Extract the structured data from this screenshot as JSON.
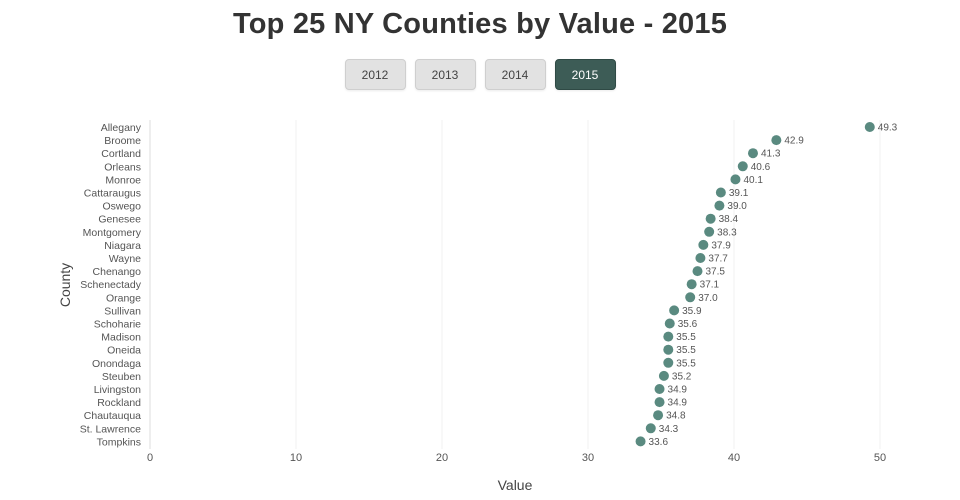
{
  "title": "Top 25 NY Counties by Value - 2015",
  "years": [
    {
      "label": "2012",
      "active": false
    },
    {
      "label": "2013",
      "active": false
    },
    {
      "label": "2014",
      "active": false
    },
    {
      "label": "2015",
      "active": true
    }
  ],
  "colors": {
    "point": "#5a8a80",
    "active_button": "#3d5c56",
    "grid": "#f0f0f0",
    "axis": "#dddddd",
    "label_text": "#555555"
  },
  "chart_data": {
    "type": "scatter",
    "title": "Top 25 NY Counties by Value - 2015",
    "xlabel": "Value",
    "ylabel": "County",
    "xlim": [
      0,
      50
    ],
    "xticks": [
      0,
      10,
      20,
      30,
      40,
      50
    ],
    "grid": true,
    "categories": [
      "Allegany",
      "Broome",
      "Cortland",
      "Orleans",
      "Monroe",
      "Cattaraugus",
      "Oswego",
      "Genesee",
      "Montgomery",
      "Niagara",
      "Wayne",
      "Chenango",
      "Schenectady",
      "Orange",
      "Sullivan",
      "Schoharie",
      "Madison",
      "Oneida",
      "Onondaga",
      "Steuben",
      "Livingston",
      "Rockland",
      "Chautauqua",
      "St. Lawrence",
      "Tompkins"
    ],
    "values": [
      49.3,
      42.9,
      41.3,
      40.6,
      40.1,
      39.1,
      39.0,
      38.4,
      38.3,
      37.9,
      37.7,
      37.5,
      37.1,
      37.0,
      35.9,
      35.6,
      35.5,
      35.5,
      35.5,
      35.2,
      34.9,
      34.9,
      34.8,
      34.3,
      33.6
    ],
    "value_labels": [
      "49.3",
      "42.9",
      "41.3",
      "40.6",
      "40.1",
      "39.1",
      "39.0",
      "38.4",
      "38.3",
      "37.9",
      "37.7",
      "37.5",
      "37.1",
      "37.0",
      "35.9",
      "35.6",
      "35.5",
      "35.5",
      "35.5",
      "35.2",
      "34.9",
      "34.9",
      "34.8",
      "34.3",
      "33.6"
    ]
  }
}
